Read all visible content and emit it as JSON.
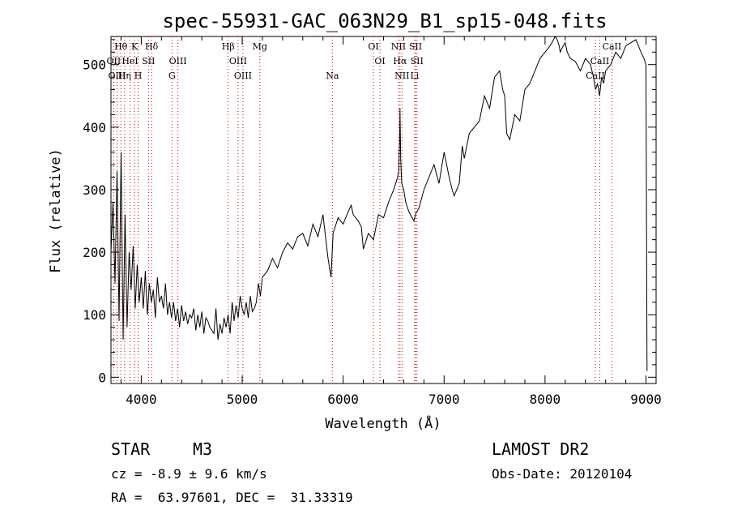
{
  "chart_data": {
    "type": "line",
    "title": "spec-55931-GAC_063N29_B1_sp15-048.fits",
    "xlabel": "Wavelength (Å)",
    "ylabel": "Flux (relative)",
    "xlim": [
      3700,
      9100
    ],
    "ylim": [
      -10,
      545
    ],
    "xticks": [
      4000,
      5000,
      6000,
      7000,
      8000,
      9000
    ],
    "yticks": [
      0,
      100,
      200,
      300,
      400,
      500
    ],
    "grid": false,
    "series": [
      {
        "x": [
          3700,
          3720,
          3740,
          3760,
          3780,
          3800,
          3820,
          3840,
          3860,
          3880,
          3900,
          3920,
          3940,
          3960,
          3980,
          4000,
          4020,
          4040,
          4060,
          4080,
          4100,
          4120,
          4140,
          4160,
          4180,
          4200,
          4220,
          4240,
          4260,
          4280,
          4300,
          4320,
          4340,
          4360,
          4380,
          4400,
          4420,
          4440,
          4460,
          4480,
          4500,
          4520,
          4540,
          4560,
          4580,
          4600,
          4620,
          4640,
          4660,
          4680,
          4700,
          4720,
          4740,
          4760,
          4780,
          4800,
          4820,
          4840,
          4860,
          4880,
          4900,
          4920,
          4940,
          4960,
          4980,
          5000,
          5020,
          5040,
          5060,
          5080,
          5100,
          5120,
          5140,
          5160,
          5180,
          5200,
          5250,
          5300,
          5350,
          5400,
          5450,
          5500,
          5550,
          5600,
          5650,
          5700,
          5750,
          5800,
          5850,
          5880,
          5900,
          5950,
          6000,
          6050,
          6080,
          6100,
          6150,
          6180,
          6200,
          6250,
          6300,
          6350,
          6400,
          6450,
          6500,
          6520,
          6540,
          6550,
          6560,
          6563,
          6570,
          6580,
          6600,
          6620,
          6650,
          6700,
          6720,
          6750,
          6800,
          6850,
          6900,
          6950,
          7000,
          7050,
          7080,
          7100,
          7150,
          7180,
          7200,
          7250,
          7300,
          7350,
          7400,
          7450,
          7500,
          7550,
          7580,
          7600,
          7620,
          7650,
          7700,
          7750,
          7800,
          7850,
          7900,
          7950,
          8000,
          8050,
          8100,
          8120,
          8140,
          8150,
          8180,
          8200,
          8220,
          8250,
          8300,
          8350,
          8400,
          8450,
          8480,
          8500,
          8520,
          8540,
          8560,
          8580,
          8600,
          8650,
          8700,
          8750,
          8800,
          8850,
          8900,
          8950,
          8980,
          9000,
          9010
        ],
        "y": [
          200,
          280,
          150,
          330,
          90,
          360,
          60,
          260,
          80,
          200,
          140,
          210,
          110,
          180,
          120,
          160,
          110,
          170,
          100,
          150,
          120,
          140,
          95,
          160,
          120,
          130,
          110,
          150,
          100,
          120,
          95,
          120,
          90,
          110,
          80,
          115,
          90,
          105,
          85,
          100,
          95,
          110,
          75,
          100,
          80,
          105,
          70,
          95,
          90,
          80,
          75,
          70,
          110,
          60,
          85,
          70,
          95,
          80,
          100,
          70,
          120,
          90,
          115,
          95,
          130,
          110,
          100,
          120,
          95,
          130,
          105,
          110,
          120,
          150,
          130,
          160,
          170,
          190,
          175,
          200,
          215,
          205,
          225,
          230,
          210,
          245,
          225,
          260,
          190,
          160,
          230,
          255,
          245,
          265,
          275,
          260,
          250,
          240,
          205,
          230,
          220,
          260,
          255,
          280,
          300,
          310,
          320,
          330,
          380,
          430,
          350,
          310,
          300,
          280,
          265,
          250,
          262,
          270,
          300,
          320,
          340,
          310,
          360,
          320,
          300,
          290,
          310,
          370,
          350,
          390,
          400,
          410,
          450,
          430,
          480,
          490,
          460,
          450,
          390,
          380,
          420,
          410,
          460,
          470,
          490,
          510,
          520,
          530,
          545,
          540,
          530,
          520,
          530,
          535,
          520,
          510,
          505,
          490,
          510,
          500,
          480,
          460,
          470,
          450,
          480,
          470,
          490,
          500,
          520,
          510,
          530,
          535,
          540,
          520,
          510,
          500,
          10
        ]
      }
    ],
    "line_markers": [
      {
        "label": "Hθ",
        "x": 3798,
        "row": 0
      },
      {
        "label": "K",
        "x": 3934,
        "row": 0
      },
      {
        "label": "Hδ",
        "x": 4102,
        "row": 0
      },
      {
        "label": "OII",
        "x": 3727,
        "row": 1
      },
      {
        "label": "HeI",
        "x": 3889,
        "row": 1
      },
      {
        "label": "SII",
        "x": 4072,
        "row": 1
      },
      {
        "label": "OIII",
        "x": 3760,
        "row": 2
      },
      {
        "label": "Hη",
        "x": 3835,
        "row": 2
      },
      {
        "label": "H",
        "x": 3969,
        "row": 2
      },
      {
        "label": "OIII",
        "x": 4363,
        "row": 1
      },
      {
        "label": "G",
        "x": 4305,
        "row": 2
      },
      {
        "label": "Hβ",
        "x": 4861,
        "row": 0
      },
      {
        "label": "Mg",
        "x": 5175,
        "row": 0
      },
      {
        "label": "OIII",
        "x": 4959,
        "row": 1
      },
      {
        "label": "OIII",
        "x": 5007,
        "row": 2
      },
      {
        "label": "Na",
        "x": 5893,
        "row": 2
      },
      {
        "label": "OI",
        "x": 6300,
        "row": 0
      },
      {
        "label": "OI",
        "x": 6364,
        "row": 1
      },
      {
        "label": "NII",
        "x": 6548,
        "row": 0
      },
      {
        "label": "SII",
        "x": 6717,
        "row": 0
      },
      {
        "label": "Hα",
        "x": 6563,
        "row": 1
      },
      {
        "label": "SII",
        "x": 6731,
        "row": 1
      },
      {
        "label": "NII",
        "x": 6583,
        "row": 2
      },
      {
        "label": "Li",
        "x": 6708,
        "row": 2
      },
      {
        "label": "CaII",
        "x": 8662,
        "row": 0
      },
      {
        "label": "CaII",
        "x": 8542,
        "row": 1
      },
      {
        "label": "CaII",
        "x": 8498,
        "row": 2
      }
    ],
    "marker_color": "#cc0000"
  },
  "info": {
    "object_type": "STAR",
    "subclass": "M3",
    "survey": "LAMOST DR2",
    "cz": "cz = -8.9 ± 9.6 km/s",
    "obs_date": "Obs-Date: 20120104",
    "coords": "RA =  63.97601, DEC =  31.33319"
  }
}
